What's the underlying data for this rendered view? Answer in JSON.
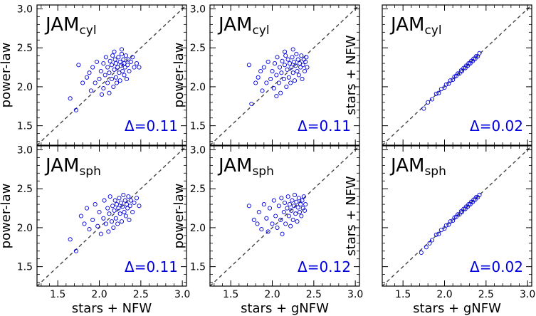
{
  "chart_data": [
    {
      "type": "scatter",
      "title": "JAM",
      "subtitle": "cyl",
      "xlabel": "",
      "ylabel": "power-law",
      "xlim": [
        1.25,
        3.05
      ],
      "ylim": [
        1.25,
        3.05
      ],
      "xticks": [],
      "yticks": [
        "1.5",
        "2.0",
        "2.5",
        "3.0"
      ],
      "annotation": "Δ=0.11",
      "identity_line": true,
      "marker_color": "#0000dd",
      "points": [
        [
          1.75,
          2.28
        ],
        [
          1.8,
          2.05
        ],
        [
          1.85,
          2.12
        ],
        [
          1.88,
          2.18
        ],
        [
          1.9,
          1.95
        ],
        [
          1.92,
          2.25
        ],
        [
          1.95,
          2.05
        ],
        [
          1.97,
          2.32
        ],
        [
          2.0,
          2.1
        ],
        [
          2.02,
          2.2
        ],
        [
          2.05,
          1.98
        ],
        [
          2.05,
          2.3
        ],
        [
          2.07,
          2.15
        ],
        [
          2.08,
          2.38
        ],
        [
          2.1,
          2.05
        ],
        [
          2.1,
          2.25
        ],
        [
          2.12,
          1.92
        ],
        [
          2.12,
          2.18
        ],
        [
          2.13,
          2.33
        ],
        [
          2.15,
          2.1
        ],
        [
          2.15,
          2.28
        ],
        [
          2.16,
          2.4
        ],
        [
          2.17,
          2.0
        ],
        [
          2.18,
          2.22
        ],
        [
          2.19,
          2.35
        ],
        [
          2.2,
          2.12
        ],
        [
          2.2,
          2.3
        ],
        [
          2.21,
          2.05
        ],
        [
          2.22,
          2.25
        ],
        [
          2.23,
          2.38
        ],
        [
          2.24,
          2.18
        ],
        [
          2.25,
          2.32
        ],
        [
          2.25,
          2.08
        ],
        [
          2.26,
          2.27
        ],
        [
          2.27,
          2.42
        ],
        [
          2.28,
          2.2
        ],
        [
          2.29,
          2.35
        ],
        [
          2.3,
          2.15
        ],
        [
          2.3,
          2.3
        ],
        [
          2.31,
          2.25
        ],
        [
          2.32,
          2.4
        ],
        [
          2.33,
          2.1
        ],
        [
          2.34,
          2.28
        ],
        [
          2.35,
          2.35
        ],
        [
          2.36,
          2.2
        ],
        [
          2.38,
          2.32
        ],
        [
          2.4,
          2.38
        ],
        [
          2.42,
          2.25
        ],
        [
          2.45,
          2.3
        ],
        [
          2.48,
          2.25
        ],
        [
          1.65,
          1.85
        ],
        [
          1.72,
          1.7
        ],
        [
          2.03,
          1.9
        ],
        [
          2.18,
          2.45
        ],
        [
          2.27,
          2.48
        ]
      ]
    },
    {
      "type": "scatter",
      "title": "JAM",
      "subtitle": "cyl",
      "xlabel": "",
      "ylabel": "power-law",
      "xlim": [
        1.25,
        3.05
      ],
      "ylim": [
        1.25,
        3.05
      ],
      "xticks": [],
      "yticks": [
        "1.5",
        "2.0",
        "2.5",
        "3.0"
      ],
      "annotation": "Δ=0.11",
      "identity_line": true,
      "marker_color": "#0000dd",
      "points": [
        [
          1.72,
          2.28
        ],
        [
          1.75,
          1.78
        ],
        [
          1.8,
          2.05
        ],
        [
          1.83,
          2.12
        ],
        [
          1.86,
          2.2
        ],
        [
          1.88,
          1.95
        ],
        [
          1.9,
          2.25
        ],
        [
          1.93,
          2.05
        ],
        [
          1.95,
          2.32
        ],
        [
          1.98,
          2.1
        ],
        [
          2.0,
          2.2
        ],
        [
          2.02,
          1.98
        ],
        [
          2.03,
          2.3
        ],
        [
          2.05,
          2.15
        ],
        [
          2.06,
          2.38
        ],
        [
          2.08,
          2.05
        ],
        [
          2.09,
          2.25
        ],
        [
          2.1,
          1.92
        ],
        [
          2.11,
          2.18
        ],
        [
          2.12,
          2.33
        ],
        [
          2.14,
          2.1
        ],
        [
          2.15,
          2.28
        ],
        [
          2.16,
          2.4
        ],
        [
          2.17,
          2.0
        ],
        [
          2.18,
          2.22
        ],
        [
          2.19,
          2.35
        ],
        [
          2.2,
          2.12
        ],
        [
          2.21,
          2.3
        ],
        [
          2.22,
          2.05
        ],
        [
          2.23,
          2.25
        ],
        [
          2.24,
          2.38
        ],
        [
          2.25,
          2.18
        ],
        [
          2.26,
          2.32
        ],
        [
          2.27,
          2.08
        ],
        [
          2.28,
          2.27
        ],
        [
          2.29,
          2.42
        ],
        [
          2.3,
          2.2
        ],
        [
          2.31,
          2.35
        ],
        [
          2.32,
          2.15
        ],
        [
          2.33,
          2.3
        ],
        [
          2.34,
          2.25
        ],
        [
          2.35,
          2.4
        ],
        [
          2.36,
          2.1
        ],
        [
          2.37,
          2.28
        ],
        [
          2.38,
          2.35
        ],
        [
          2.39,
          2.2
        ],
        [
          2.4,
          2.32
        ],
        [
          2.41,
          2.38
        ],
        [
          2.42,
          2.25
        ],
        [
          2.05,
          1.88
        ],
        [
          2.15,
          2.45
        ],
        [
          2.25,
          2.48
        ]
      ]
    },
    {
      "type": "scatter",
      "title": "JAM",
      "subtitle": "cyl",
      "xlabel": "",
      "ylabel": "stars + NFW",
      "xlim": [
        1.25,
        3.05
      ],
      "ylim": [
        1.25,
        3.05
      ],
      "xticks": [],
      "yticks": [],
      "annotation": "Δ=0.02",
      "identity_line": true,
      "marker_color": "#0000dd",
      "points": [
        [
          1.75,
          1.72
        ],
        [
          1.8,
          1.8
        ],
        [
          1.85,
          1.84
        ],
        [
          1.9,
          1.91
        ],
        [
          1.93,
          1.92
        ],
        [
          1.96,
          1.97
        ],
        [
          2.0,
          1.99
        ],
        [
          2.02,
          2.03
        ],
        [
          2.05,
          2.04
        ],
        [
          2.07,
          2.08
        ],
        [
          2.1,
          2.09
        ],
        [
          2.12,
          2.13
        ],
        [
          2.14,
          2.14
        ],
        [
          2.16,
          2.17
        ],
        [
          2.18,
          2.17
        ],
        [
          2.2,
          2.21
        ],
        [
          2.21,
          2.2
        ],
        [
          2.23,
          2.24
        ],
        [
          2.25,
          2.24
        ],
        [
          2.26,
          2.27
        ],
        [
          2.28,
          2.27
        ],
        [
          2.29,
          2.3
        ],
        [
          2.31,
          2.3
        ],
        [
          2.32,
          2.33
        ],
        [
          2.34,
          2.33
        ],
        [
          2.35,
          2.36
        ],
        [
          2.37,
          2.36
        ],
        [
          2.38,
          2.39
        ],
        [
          2.4,
          2.39
        ],
        [
          2.42,
          2.43
        ]
      ]
    },
    {
      "type": "scatter",
      "title": "JAM",
      "subtitle": "sph",
      "xlabel": "stars + NFW",
      "ylabel": "power-law",
      "xlim": [
        1.25,
        3.05
      ],
      "ylim": [
        1.25,
        3.05
      ],
      "xticks": [
        "1.5",
        "2.0",
        "2.5",
        "3.0"
      ],
      "yticks": [
        "1.5",
        "2.0",
        "2.5",
        "3.0"
      ],
      "annotation": "Δ=0.11",
      "identity_line": true,
      "marker_color": "#0000dd",
      "points": [
        [
          1.65,
          1.85
        ],
        [
          1.72,
          1.7
        ],
        [
          1.78,
          2.15
        ],
        [
          1.82,
          2.05
        ],
        [
          1.85,
          2.25
        ],
        [
          1.88,
          1.98
        ],
        [
          1.92,
          2.1
        ],
        [
          1.95,
          2.3
        ],
        [
          1.98,
          2.02
        ],
        [
          2.0,
          2.2
        ],
        [
          2.02,
          1.92
        ],
        [
          2.05,
          2.12
        ],
        [
          2.06,
          2.35
        ],
        [
          2.08,
          2.05
        ],
        [
          2.1,
          2.25
        ],
        [
          2.11,
          1.95
        ],
        [
          2.12,
          2.18
        ],
        [
          2.13,
          2.4
        ],
        [
          2.15,
          2.08
        ],
        [
          2.16,
          2.28
        ],
        [
          2.17,
          2.0
        ],
        [
          2.18,
          2.22
        ],
        [
          2.19,
          2.35
        ],
        [
          2.2,
          2.12
        ],
        [
          2.21,
          2.3
        ],
        [
          2.22,
          2.05
        ],
        [
          2.23,
          2.25
        ],
        [
          2.24,
          2.38
        ],
        [
          2.25,
          2.18
        ],
        [
          2.26,
          2.32
        ],
        [
          2.27,
          2.08
        ],
        [
          2.28,
          2.27
        ],
        [
          2.29,
          2.42
        ],
        [
          2.3,
          2.2
        ],
        [
          2.31,
          2.35
        ],
        [
          2.32,
          2.15
        ],
        [
          2.33,
          2.3
        ],
        [
          2.34,
          2.25
        ],
        [
          2.35,
          2.4
        ],
        [
          2.36,
          2.1
        ],
        [
          2.37,
          2.28
        ],
        [
          2.38,
          2.35
        ],
        [
          2.4,
          2.2
        ],
        [
          2.42,
          2.32
        ],
        [
          2.45,
          2.38
        ],
        [
          2.48,
          2.28
        ]
      ]
    },
    {
      "type": "scatter",
      "title": "JAM",
      "subtitle": "sph",
      "xlabel": "stars + gNFW",
      "ylabel": "power-law",
      "xlim": [
        1.25,
        3.05
      ],
      "ylim": [
        1.25,
        3.05
      ],
      "xticks": [
        "1.5",
        "2.0",
        "2.5",
        "3.0"
      ],
      "yticks": [
        "1.5",
        "2.0",
        "2.5",
        "3.0"
      ],
      "annotation": "Δ=0.12",
      "identity_line": true,
      "marker_color": "#0000dd",
      "points": [
        [
          1.72,
          2.28
        ],
        [
          1.78,
          2.1
        ],
        [
          1.82,
          2.05
        ],
        [
          1.84,
          2.2
        ],
        [
          1.87,
          1.98
        ],
        [
          1.9,
          2.3
        ],
        [
          1.93,
          2.12
        ],
        [
          1.95,
          1.95
        ],
        [
          1.97,
          2.25
        ],
        [
          2.0,
          2.05
        ],
        [
          2.02,
          2.35
        ],
        [
          2.04,
          2.15
        ],
        [
          2.06,
          2.0
        ],
        [
          2.08,
          2.28
        ],
        [
          2.1,
          2.1
        ],
        [
          2.11,
          2.38
        ],
        [
          2.12,
          1.92
        ],
        [
          2.14,
          2.2
        ],
        [
          2.15,
          2.32
        ],
        [
          2.16,
          2.05
        ],
        [
          2.18,
          2.25
        ],
        [
          2.19,
          2.4
        ],
        [
          2.2,
          2.15
        ],
        [
          2.21,
          2.3
        ],
        [
          2.22,
          2.02
        ],
        [
          2.23,
          2.22
        ],
        [
          2.24,
          2.35
        ],
        [
          2.25,
          2.1
        ],
        [
          2.26,
          2.28
        ],
        [
          2.27,
          2.42
        ],
        [
          2.28,
          2.18
        ],
        [
          2.29,
          2.33
        ],
        [
          2.3,
          2.08
        ],
        [
          2.31,
          2.26
        ],
        [
          2.32,
          2.38
        ],
        [
          2.33,
          2.2
        ],
        [
          2.34,
          2.3
        ],
        [
          2.35,
          2.15
        ],
        [
          2.36,
          2.35
        ],
        [
          2.37,
          2.25
        ],
        [
          2.38,
          2.4
        ],
        [
          2.39,
          2.22
        ],
        [
          2.4,
          2.3
        ]
      ]
    },
    {
      "type": "scatter",
      "title": "JAM",
      "subtitle": "sph",
      "xlabel": "stars + gNFW",
      "ylabel": "stars + NFW",
      "xlim": [
        1.25,
        3.05
      ],
      "ylim": [
        1.25,
        3.05
      ],
      "xticks": [
        "1.5",
        "2.0",
        "2.5",
        "3.0"
      ],
      "yticks": [],
      "annotation": "Δ=0.02",
      "identity_line": true,
      "marker_color": "#0000dd",
      "points": [
        [
          1.72,
          1.68
        ],
        [
          1.78,
          1.75
        ],
        [
          1.82,
          1.8
        ],
        [
          1.85,
          1.84
        ],
        [
          1.9,
          1.91
        ],
        [
          1.93,
          1.92
        ],
        [
          1.96,
          1.97
        ],
        [
          2.0,
          1.99
        ],
        [
          2.02,
          2.03
        ],
        [
          2.05,
          2.04
        ],
        [
          2.07,
          2.08
        ],
        [
          2.1,
          2.09
        ],
        [
          2.12,
          2.13
        ],
        [
          2.14,
          2.14
        ],
        [
          2.16,
          2.17
        ],
        [
          2.18,
          2.17
        ],
        [
          2.2,
          2.21
        ],
        [
          2.21,
          2.2
        ],
        [
          2.23,
          2.24
        ],
        [
          2.25,
          2.24
        ],
        [
          2.26,
          2.27
        ],
        [
          2.28,
          2.27
        ],
        [
          2.29,
          2.3
        ],
        [
          2.31,
          2.3
        ],
        [
          2.32,
          2.33
        ],
        [
          2.34,
          2.33
        ],
        [
          2.35,
          2.36
        ],
        [
          2.37,
          2.36
        ],
        [
          2.38,
          2.39
        ],
        [
          2.4,
          2.39
        ],
        [
          2.42,
          2.42
        ]
      ]
    }
  ]
}
